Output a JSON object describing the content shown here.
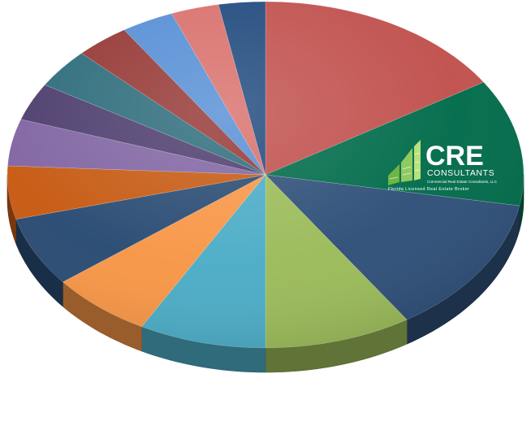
{
  "chart_data": {
    "type": "pie",
    "style": "3d-tilted",
    "title": "",
    "legend": "none",
    "data_labels": "none",
    "start": "top (12 o'clock), clockwise",
    "slices": [
      {
        "value": 16.5,
        "color": "#c0504d"
      },
      {
        "value": 12.2,
        "color": "#006b4a"
      },
      {
        "value": 13.3,
        "color": "#2e4f78"
      },
      {
        "value": 9.5,
        "color": "#9bbb59"
      },
      {
        "value": 8.2,
        "color": "#4bacc6"
      },
      {
        "value": 6.6,
        "color": "#f79646"
      },
      {
        "value": 6.7,
        "color": "#284a72"
      },
      {
        "value": 5.1,
        "color": "#c65911"
      },
      {
        "value": 4.5,
        "color": "#8064a2"
      },
      {
        "value": 3.6,
        "color": "#4c3c6d"
      },
      {
        "value": 3.8,
        "color": "#2c6b7a"
      },
      {
        "value": 3.5,
        "color": "#953734"
      },
      {
        "value": 3.4,
        "color": "#558ed5"
      },
      {
        "value": 3.1,
        "color": "#d96f6b"
      },
      {
        "value": 3.0,
        "color": "#1f497d"
      }
    ]
  },
  "logo": {
    "title": "CRE",
    "subtitle": "CONSULTANTS",
    "line1": "Commercial Real Estate Consultants, LLC",
    "line2": "Florida Licensed Real Estate Broker",
    "color": "#ffffff",
    "mark_color": "#7fc241"
  }
}
